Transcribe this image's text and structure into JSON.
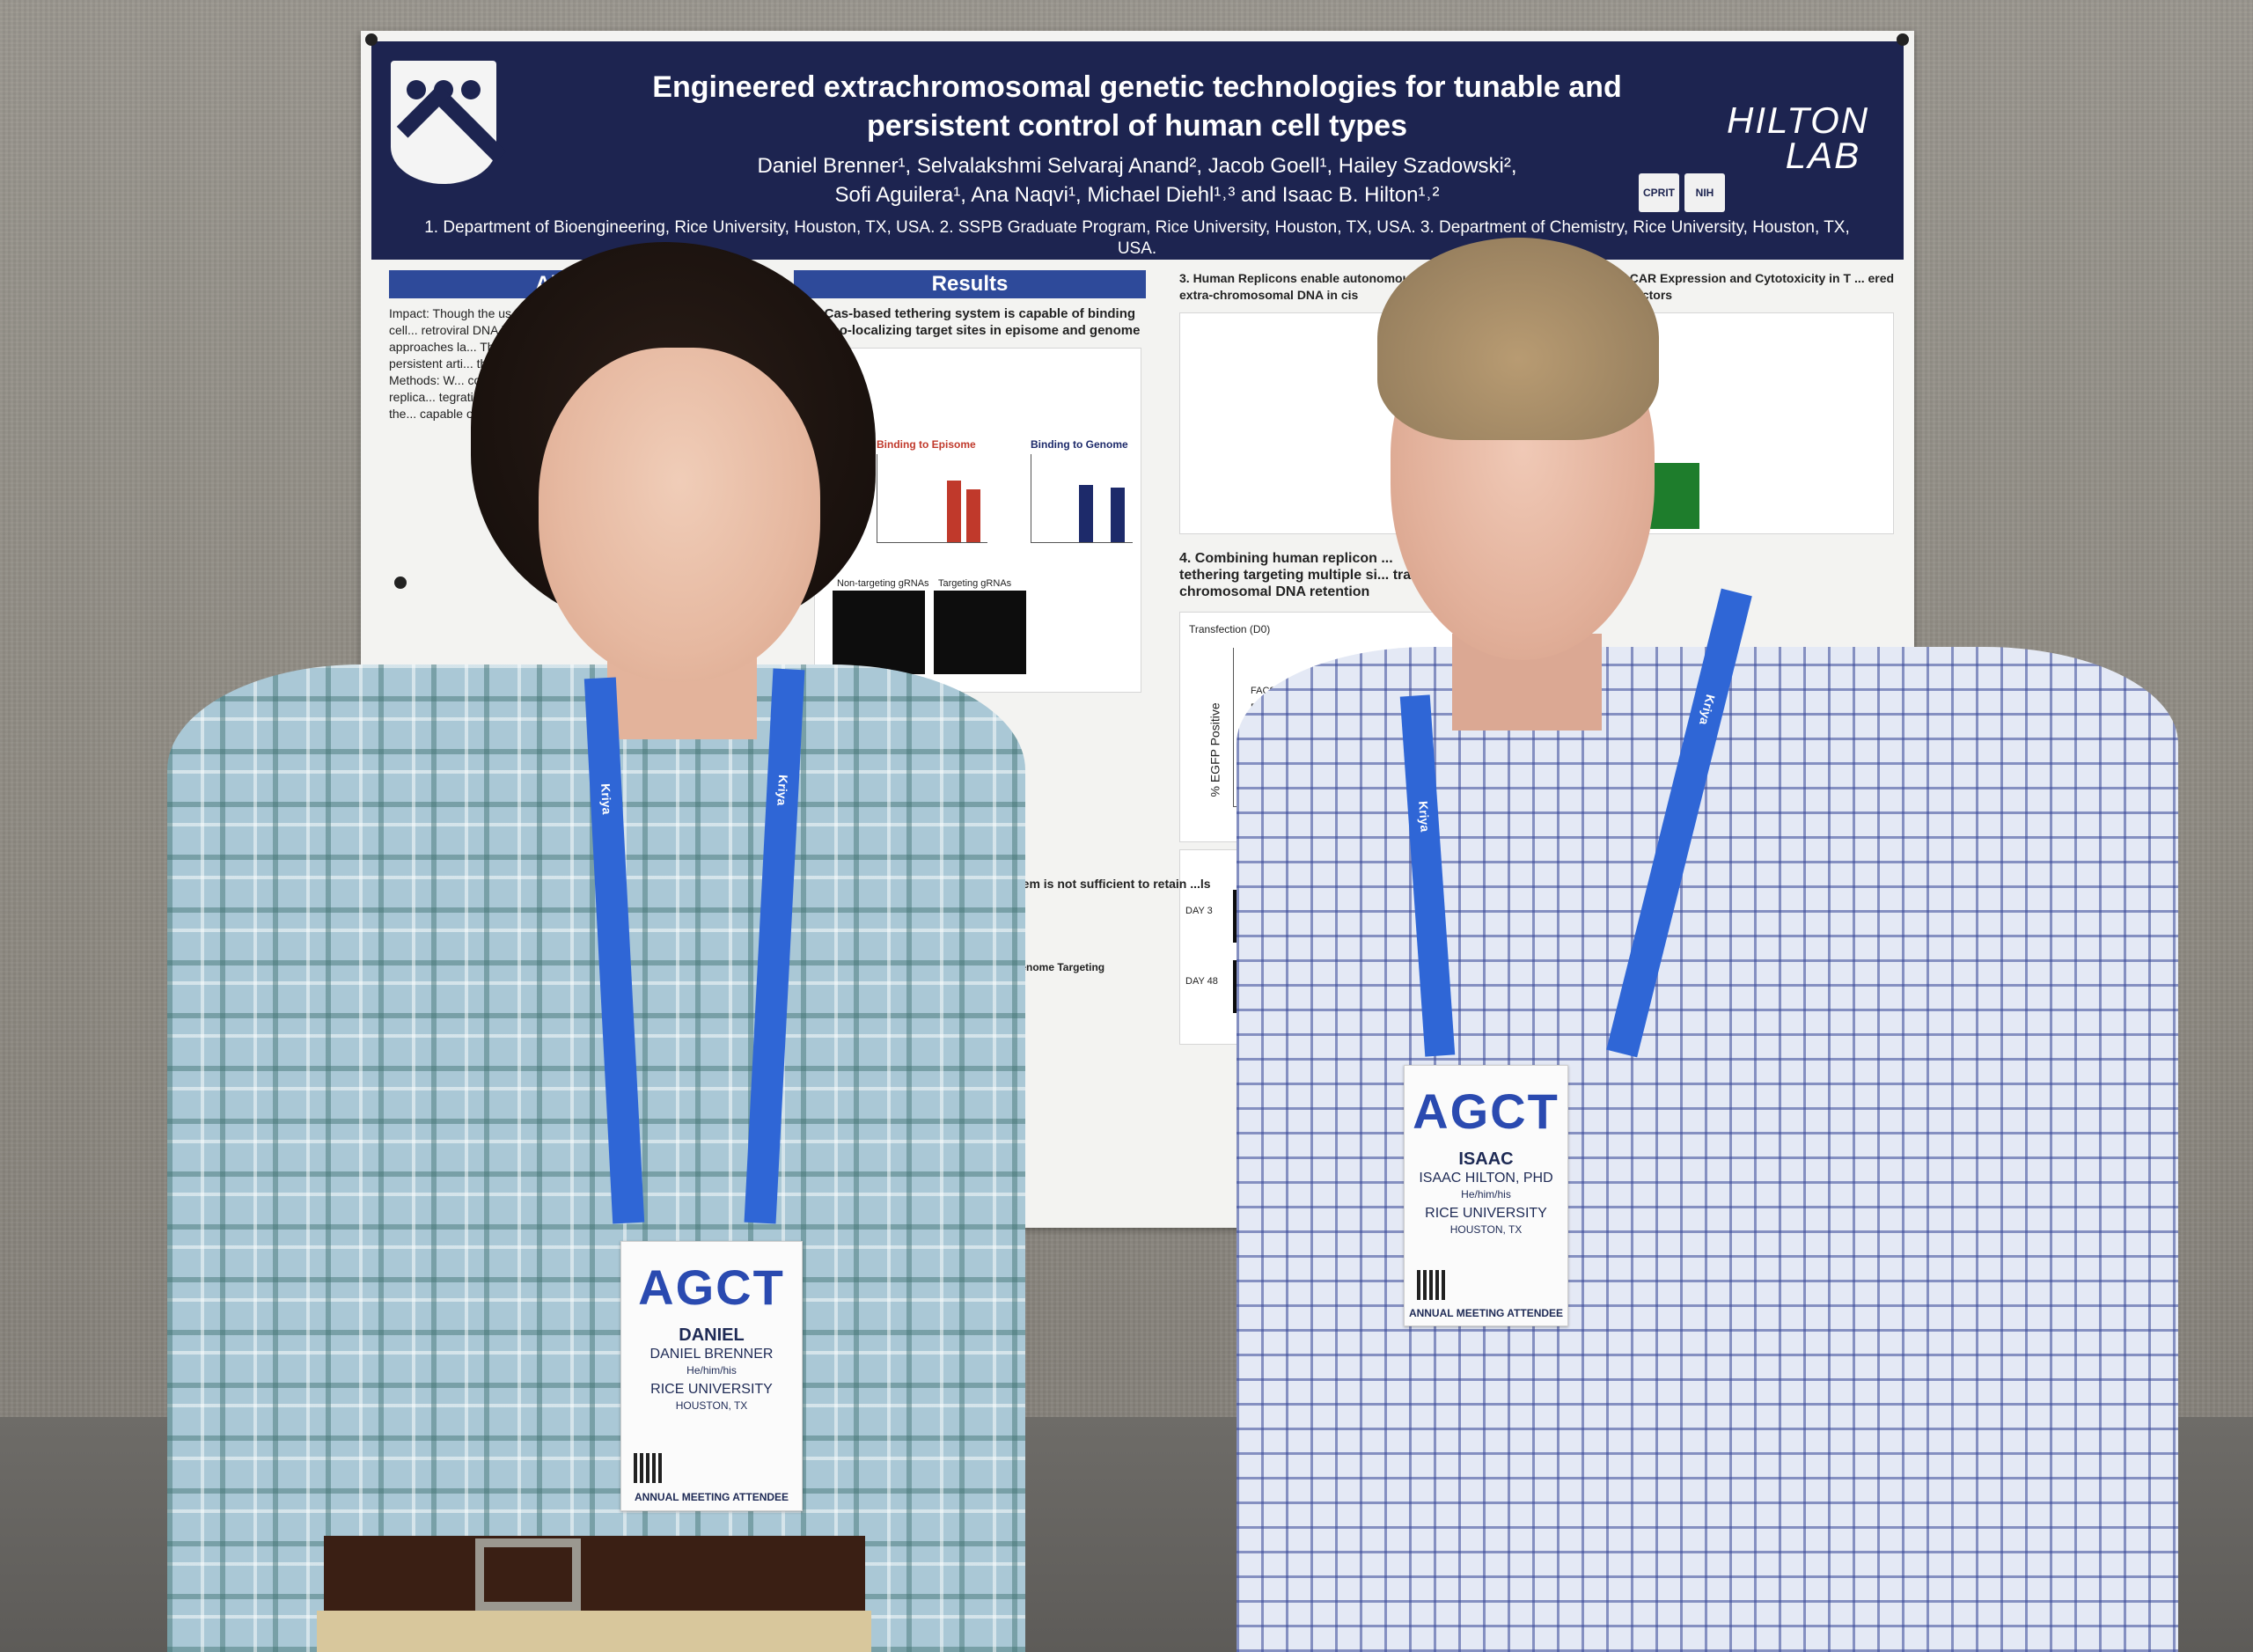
{
  "poster": {
    "title_line1": "Engineered extrachromosomal genetic technologies for tunable and",
    "title_line2": "persistent control of human cell types",
    "authors_line1": "Daniel Brenner¹, Selvalakshmi Selvaraj Anand², Jacob Goell¹, Hailey Szadowski²,",
    "authors_line2": "Sofi Aguilera¹, Ana Naqvi¹, Michael Diehl¹˒³ and Isaac B. Hilton¹˒²",
    "affiliations": "1. Department of Bioengineering, Rice University, Houston, TX, USA. 2. SSPB Graduate Program, Rice University, Houston, TX, USA. 3. Department of Chemistry, Rice University, Houston, TX, USA.",
    "lab_logo_line1": "HILTON",
    "lab_logo_line2": "LAB",
    "sponsor1": "CPRIT",
    "sponsor2": "NIH",
    "sections": {
      "abstract": "Abstract",
      "results": "Results",
      "results_sub1": "1. Cas-based tethering system is capable of binding and co-localizing target sites in episome and genome",
      "sec3": "3. Human Replicons enable autonomous replication ... extra-chromosomal DNA in cis",
      "sec3b": "Evaluation of CAR Expression and Cytotoxicity in T ... ered via Episomal Vectors",
      "sec4": "4. Combining human replicon ... tethering targeting multiple si... tra-chromosomal DNA retention",
      "fig_binding_episome": "Binding to Episome",
      "fig_binding_genome": "Binding to Genome",
      "fig_nontargeting": "Non-targeting gRNAs",
      "fig_targeting": "Targeting gRNAs",
      "fig_axis_egfp": "% EGFP Positive",
      "fig_transfection": "Transfection (D0)",
      "fig_facs": "FACS Enrich D17",
      "fig_day3": "DAY 3",
      "fig_day48": "DAY 48",
      "fig_genome_targeting": "Genome Targeting",
      "fig_sub2": "...em is not sufficient to retain ...ls"
    },
    "abstract_text": "Impact: Though the us... seen clinical success... primary human cell... retroviral DNA in... vectors attractive... therapy, howev... approaches la... This proposal... non-integratin... and combine... persistent arti... the degree of... of maintainin... several field... Methods: W... coding episom... genomic localiz... vectors. The replica... tegrating episome... episomes at speci... somes containing the... capable of tunable ex..."
  },
  "badges": {
    "left": {
      "logo": "AGCT",
      "first_name": "DANIEL",
      "full_name": "DANIEL BRENNER",
      "pronouns": "He/him/his",
      "institution": "RICE UNIVERSITY",
      "city": "HOUSTON, TX",
      "footer": "ANNUAL MEETING ATTENDEE"
    },
    "right": {
      "logo": "AGCT",
      "first_name": "ISAAC",
      "full_name": "ISAAC HILTON, PHD",
      "pronouns": "He/him/his",
      "institution": "RICE UNIVERSITY",
      "city": "HOUSTON, TX",
      "footer": "ANNUAL MEETING ATTENDEE"
    }
  },
  "lanyard_text": "Kriya",
  "colors": {
    "poster_header": "#1d2450",
    "section_bar": "#2e4a9a",
    "lanyard": "#2f66d6",
    "wall": "#8f8b84"
  }
}
